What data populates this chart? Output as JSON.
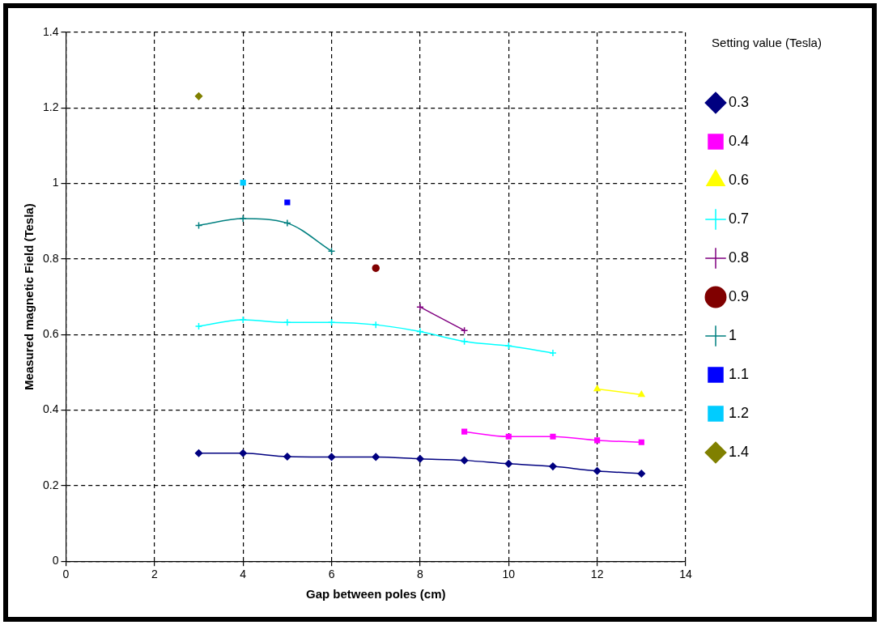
{
  "chart_data": {
    "type": "line",
    "xlabel": "Gap between poles (cm)",
    "ylabel": "Measured magnetic Field (Tesla)",
    "legend_title": "Setting value (Tesla)",
    "xlim": [
      0,
      14
    ],
    "xticks": [
      0,
      2,
      4,
      6,
      8,
      10,
      12,
      14
    ],
    "ylim": [
      0,
      1.4
    ],
    "yticks": [
      0,
      0.2,
      0.4,
      0.6,
      0.8,
      1,
      1.2,
      1.4
    ],
    "grid": true,
    "legend": "right",
    "line_style": "solid",
    "series": [
      {
        "name": "0.3",
        "color": "#000080",
        "marker": "diamond",
        "x": [
          3,
          4,
          5,
          6,
          7,
          8,
          9,
          10,
          11,
          12,
          13
        ],
        "values": [
          0.286,
          0.286,
          0.277,
          0.276,
          0.276,
          0.271,
          0.267,
          0.258,
          0.251,
          0.239,
          0.232
        ]
      },
      {
        "name": "0.4",
        "color": "#ff00ff",
        "marker": "square",
        "x": [
          9,
          10,
          11,
          12,
          13
        ],
        "values": [
          0.343,
          0.33,
          0.33,
          0.32,
          0.315
        ]
      },
      {
        "name": "0.6",
        "color": "#ffff00",
        "marker": "triangle",
        "x": [
          12,
          13
        ],
        "values": [
          0.456,
          0.441
        ]
      },
      {
        "name": "0.7",
        "color": "#00ffff",
        "marker": "cross",
        "x": [
          3,
          4,
          5,
          6,
          7,
          8,
          9,
          10,
          11
        ],
        "values": [
          0.622,
          0.639,
          0.632,
          0.632,
          0.626,
          0.608,
          0.582,
          0.57,
          0.551
        ]
      },
      {
        "name": "0.8",
        "color": "#800080",
        "marker": "cross",
        "x": [
          8,
          9
        ],
        "values": [
          0.673,
          0.611
        ]
      },
      {
        "name": "0.9",
        "color": "#800000",
        "marker": "circle",
        "x": [
          7
        ],
        "values": [
          0.776
        ]
      },
      {
        "name": "1",
        "color": "#008080",
        "marker": "cross",
        "x": [
          3,
          4,
          5,
          6
        ],
        "values": [
          0.889,
          0.907,
          0.895,
          0.821
        ]
      },
      {
        "name": "1.1",
        "color": "#0000ff",
        "marker": "square",
        "x": [
          5
        ],
        "values": [
          0.95
        ]
      },
      {
        "name": "1.2",
        "color": "#00ccff",
        "marker": "square",
        "x": [
          4
        ],
        "values": [
          1.002
        ]
      },
      {
        "name": "1.4",
        "color": "#808000",
        "marker": "diamond",
        "x": [
          3
        ],
        "values": [
          1.231
        ]
      }
    ]
  }
}
